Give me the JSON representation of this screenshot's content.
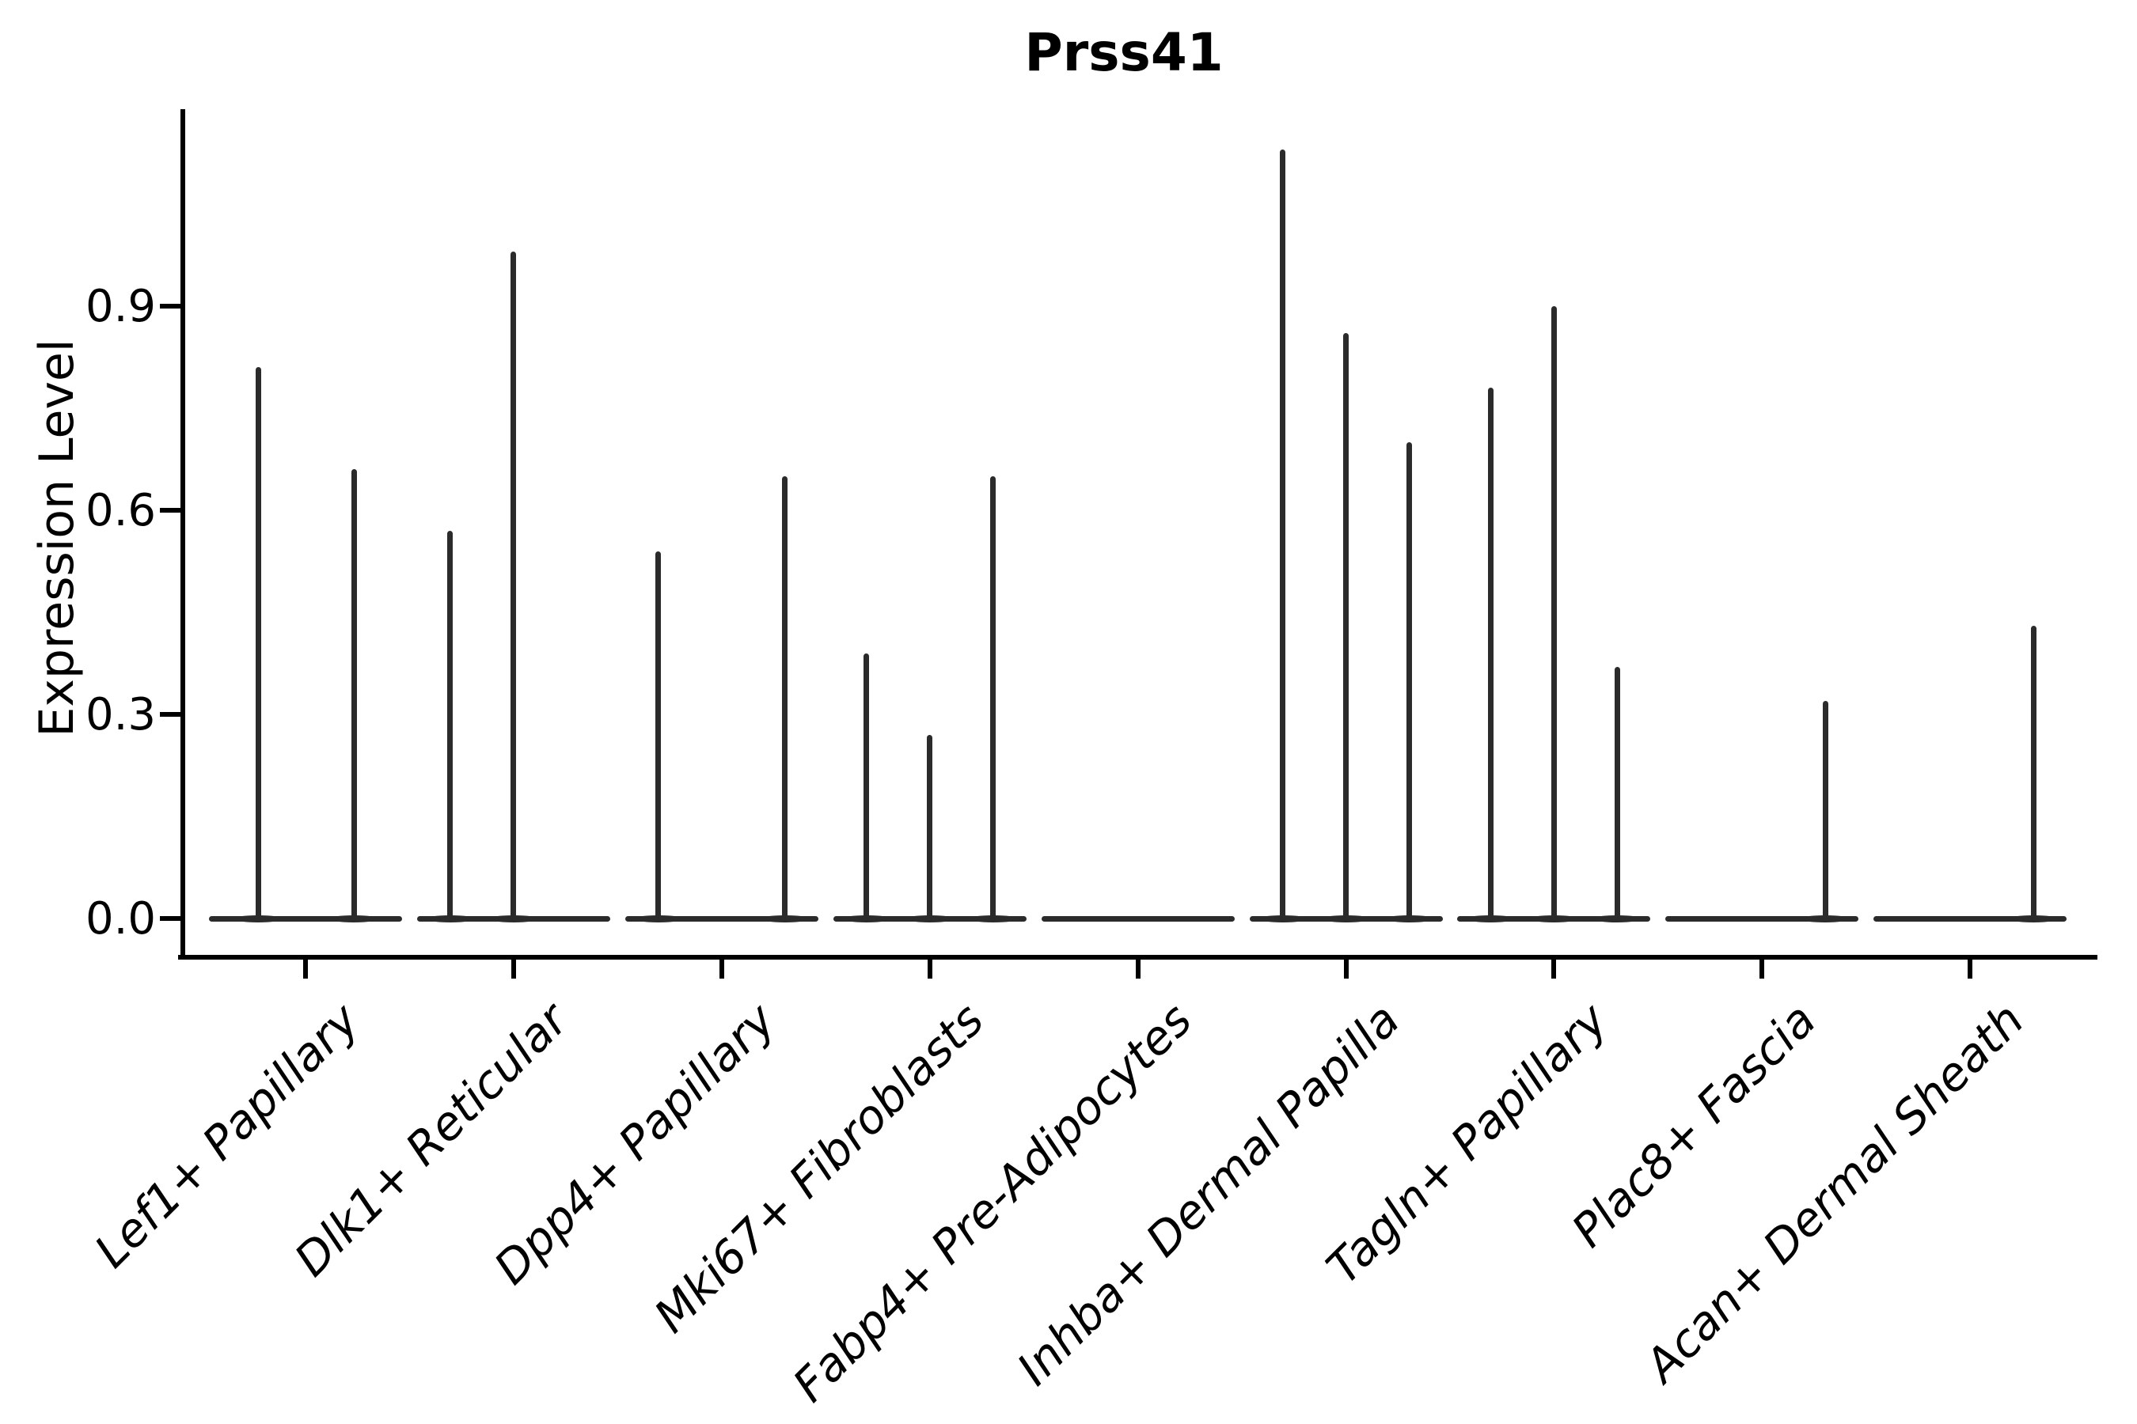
{
  "chart_data": {
    "type": "violin",
    "title": "Prss41",
    "ylabel": "Expression Level",
    "xlabel": "",
    "grid": false,
    "legend": "none",
    "ytick_labels": [
      "0.0",
      "0.3",
      "0.6",
      "0.9"
    ],
    "ytick_values": [
      0.0,
      0.3,
      0.6,
      0.9
    ],
    "ylim": [
      -0.06,
      1.19
    ],
    "categories": [
      "Lef1+ Papillary",
      "Dlk1+ Reticular",
      "Dpp4+ Papillary",
      "Mki67+ Fibroblasts",
      "Fabp4+ Pre-Adipocytes",
      "Inhba+ Dermal Papilla",
      "Tagln+ Papillary",
      "Plac8+ Fascia",
      "Acan+ Dermal Sheath"
    ],
    "violins": [
      {
        "category": "Lef1+ Papillary",
        "spikes": [
          {
            "offset": -60,
            "peak": 0.81
          },
          {
            "offset": 61,
            "peak": 0.66
          }
        ]
      },
      {
        "category": "Dlk1+ Reticular",
        "spikes": [
          {
            "offset": -80,
            "peak": 0.57
          },
          {
            "offset": 0,
            "peak": 0.98
          }
        ]
      },
      {
        "category": "Dpp4+ Papillary",
        "spikes": [
          {
            "offset": -80,
            "peak": 0.54
          },
          {
            "offset": 80,
            "peak": 0.65
          }
        ]
      },
      {
        "category": "Mki67+ Fibroblasts",
        "spikes": [
          {
            "offset": -80,
            "peak": 0.39
          },
          {
            "offset": 0,
            "peak": 0.27
          },
          {
            "offset": 80,
            "peak": 0.65
          }
        ]
      },
      {
        "category": "Fabp4+ Pre-Adipocytes",
        "spikes": []
      },
      {
        "category": "Inhba+ Dermal Papilla",
        "spikes": [
          {
            "offset": -80,
            "peak": 1.13
          },
          {
            "offset": 0,
            "peak": 0.86
          },
          {
            "offset": 80,
            "peak": 0.7
          }
        ]
      },
      {
        "category": "Tagln+ Papillary",
        "spikes": [
          {
            "offset": -80,
            "peak": 0.78
          },
          {
            "offset": 0,
            "peak": 0.9
          },
          {
            "offset": 80,
            "peak": 0.37
          }
        ]
      },
      {
        "category": "Plac8+ Fascia",
        "spikes": [
          {
            "offset": 80,
            "peak": 0.32
          }
        ]
      },
      {
        "category": "Acan+ Dermal Sheath",
        "spikes": [
          {
            "offset": 80,
            "peak": 0.43
          }
        ]
      }
    ],
    "colors": {
      "violin_stroke": "#2b2b2b",
      "axis": "#000000",
      "background": "#ffffff"
    }
  }
}
